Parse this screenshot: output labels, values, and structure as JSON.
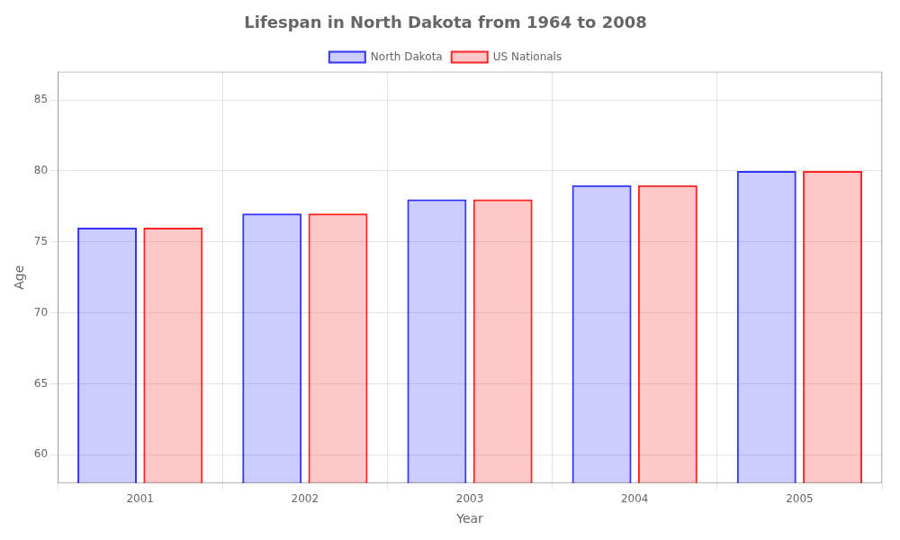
{
  "chart_data": {
    "type": "bar",
    "title": "Lifespan in North Dakota from 1964 to 2008",
    "xlabel": "Year",
    "ylabel": "Age",
    "categories": [
      "2001",
      "2002",
      "2003",
      "2004",
      "2005"
    ],
    "series": [
      {
        "name": "North Dakota",
        "color": "#3333ff",
        "values": [
          76.0,
          77.0,
          78.0,
          79.0,
          80.0
        ]
      },
      {
        "name": "US Nationals",
        "color": "#ff2222",
        "values": [
          76.0,
          77.0,
          78.0,
          79.0,
          80.0
        ]
      }
    ],
    "ylim": [
      58,
      87
    ],
    "yticks": [
      60,
      65,
      70,
      75,
      80,
      85
    ],
    "grid": true,
    "legend": "top"
  }
}
